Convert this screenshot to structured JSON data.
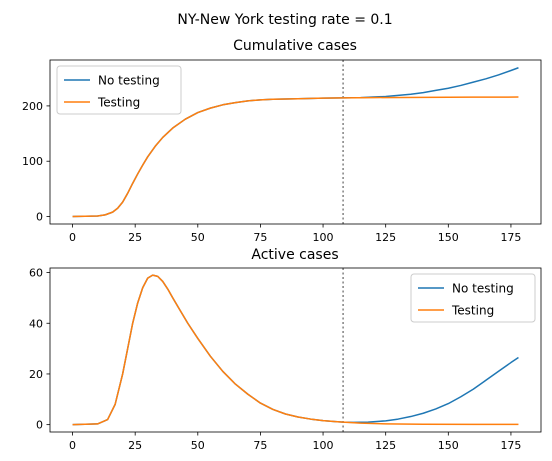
{
  "figure": {
    "suptitle": "NY-New York testing rate = 0.1"
  },
  "colors": {
    "no_testing": "#1f77b4",
    "testing": "#ff7f0e",
    "vline": "#808080"
  },
  "chart_data": [
    {
      "type": "line",
      "title": "Cumulative cases",
      "xlabel": "",
      "ylabel": "",
      "xlim": [
        -9,
        187
      ],
      "ylim": [
        -13.5,
        283
      ],
      "xticks": [
        0,
        25,
        50,
        75,
        100,
        125,
        150,
        175
      ],
      "yticks": [
        0,
        100,
        200
      ],
      "grid": false,
      "legend_position": "upper left",
      "vline_x": 108,
      "series": [
        {
          "name": "No testing",
          "color_key": "no_testing",
          "x": [
            0,
            10,
            13,
            16,
            18,
            20,
            22,
            24,
            26,
            28,
            30,
            33,
            36,
            40,
            45,
            50,
            55,
            60,
            65,
            70,
            75,
            80,
            90,
            100,
            108,
            115,
            120,
            125,
            130,
            135,
            140,
            145,
            150,
            155,
            160,
            165,
            170,
            175,
            178
          ],
          "y": [
            0,
            1,
            3,
            8,
            15,
            26,
            42,
            60,
            77,
            93,
            108,
            127,
            143,
            160,
            176,
            188,
            196,
            202,
            206,
            209,
            211,
            212,
            213,
            214,
            214.5,
            215,
            216,
            217,
            219,
            221,
            224,
            228,
            232,
            237,
            243,
            249,
            256,
            264,
            269
          ]
        },
        {
          "name": "Testing",
          "color_key": "testing",
          "x": [
            0,
            10,
            13,
            16,
            18,
            20,
            22,
            24,
            26,
            28,
            30,
            33,
            36,
            40,
            45,
            50,
            55,
            60,
            65,
            70,
            75,
            80,
            90,
            100,
            108,
            120,
            140,
            160,
            178
          ],
          "y": [
            0,
            1,
            3,
            8,
            15,
            26,
            42,
            60,
            77,
            93,
            108,
            127,
            143,
            160,
            176,
            188,
            196,
            202,
            206,
            209,
            211,
            212,
            213,
            214,
            214.5,
            215,
            215.5,
            215.8,
            216
          ]
        }
      ]
    },
    {
      "type": "line",
      "title": "Active cases",
      "xlabel": "",
      "ylabel": "",
      "xlim": [
        -9,
        187
      ],
      "ylim": [
        -2.9,
        61.8
      ],
      "xticks": [
        0,
        25,
        50,
        75,
        100,
        125,
        150,
        175
      ],
      "yticks": [
        0,
        20,
        40,
        60
      ],
      "grid": false,
      "legend_position": "upper right",
      "vline_x": 108,
      "series": [
        {
          "name": "No testing",
          "color_key": "no_testing",
          "x": [
            0,
            10,
            14,
            17,
            20,
            22,
            24,
            26,
            28,
            30,
            32,
            34,
            36,
            38,
            40,
            43,
            46,
            50,
            55,
            60,
            65,
            70,
            75,
            80,
            85,
            90,
            95,
            100,
            105,
            108,
            112,
            118,
            125,
            130,
            135,
            140,
            145,
            150,
            155,
            160,
            165,
            170,
            175,
            178
          ],
          "y": [
            0,
            0.3,
            2,
            8,
            20,
            30,
            40,
            48,
            54,
            57.8,
            59,
            58.5,
            56.5,
            53.5,
            50,
            45,
            40,
            34,
            27,
            21,
            16,
            12,
            8.5,
            6,
            4.2,
            3,
            2.2,
            1.6,
            1.2,
            1.0,
            0.9,
            1.0,
            1.5,
            2.2,
            3.2,
            4.5,
            6.2,
            8.3,
            11,
            14,
            17.5,
            21,
            24.5,
            26.5
          ]
        },
        {
          "name": "Testing",
          "color_key": "testing",
          "x": [
            0,
            10,
            14,
            17,
            20,
            22,
            24,
            26,
            28,
            30,
            32,
            34,
            36,
            38,
            40,
            43,
            46,
            50,
            55,
            60,
            65,
            70,
            75,
            80,
            85,
            90,
            95,
            100,
            105,
            108,
            115,
            125,
            140,
            160,
            178
          ],
          "y": [
            0,
            0.3,
            2,
            8,
            20,
            30,
            40,
            48,
            54,
            57.8,
            59,
            58.5,
            56.5,
            53.5,
            50,
            45,
            40,
            34,
            27,
            21,
            16,
            12,
            8.5,
            6,
            4.2,
            3,
            2.2,
            1.6,
            1.2,
            1.0,
            0.6,
            0.3,
            0.15,
            0.1,
            0.1
          ]
        }
      ]
    }
  ]
}
